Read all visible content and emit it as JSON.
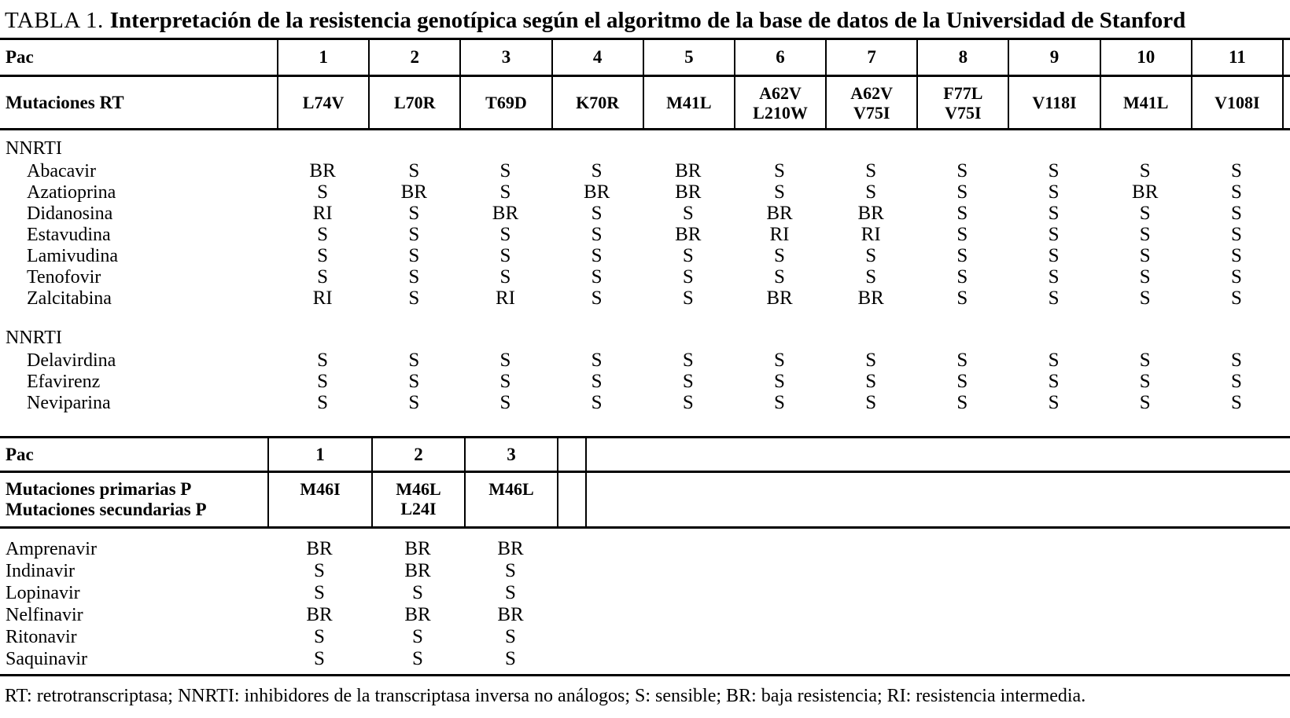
{
  "title": {
    "prefix": "TABLA 1.",
    "main": "Interpretación de la resistencia genotípica según el algoritmo de la base de datos de la Universidad de Stanford"
  },
  "rt_table": {
    "pac_label": "Pac",
    "patients": [
      "1",
      "2",
      "3",
      "4",
      "5",
      "6",
      "7",
      "8",
      "9",
      "10",
      "11"
    ],
    "mutations_label": "Mutaciones RT",
    "mutations": [
      [
        "L74V"
      ],
      [
        "L70R"
      ],
      [
        "T69D"
      ],
      [
        "K70R"
      ],
      [
        "M41L"
      ],
      [
        "A62V",
        "L210W"
      ],
      [
        "A62V",
        "V75I"
      ],
      [
        "F77L",
        "V75I"
      ],
      [
        "V118I"
      ],
      [
        "M41L"
      ],
      [
        "V108I"
      ]
    ],
    "sections": [
      {
        "heading": "NNRTI",
        "rows": [
          {
            "drug": "Abacavir",
            "values": [
              "BR",
              "S",
              "S",
              "S",
              "BR",
              "S",
              "S",
              "S",
              "S",
              "S",
              "S"
            ]
          },
          {
            "drug": "Azatioprina",
            "values": [
              "S",
              "BR",
              "S",
              "BR",
              "BR",
              "S",
              "S",
              "S",
              "S",
              "BR",
              "S"
            ]
          },
          {
            "drug": "Didanosina",
            "values": [
              "RI",
              "S",
              "BR",
              "S",
              "S",
              "BR",
              "BR",
              "S",
              "S",
              "S",
              "S"
            ]
          },
          {
            "drug": "Estavudina",
            "values": [
              "S",
              "S",
              "S",
              "S",
              "BR",
              "RI",
              "RI",
              "S",
              "S",
              "S",
              "S"
            ]
          },
          {
            "drug": "Lamivudina",
            "values": [
              "S",
              "S",
              "S",
              "S",
              "S",
              "S",
              "S",
              "S",
              "S",
              "S",
              "S"
            ]
          },
          {
            "drug": "Tenofovir",
            "values": [
              "S",
              "S",
              "S",
              "S",
              "S",
              "S",
              "S",
              "S",
              "S",
              "S",
              "S"
            ]
          },
          {
            "drug": "Zalcitabina",
            "values": [
              "RI",
              "S",
              "RI",
              "S",
              "S",
              "BR",
              "BR",
              "S",
              "S",
              "S",
              "S"
            ]
          }
        ]
      },
      {
        "heading": "NNRTI",
        "rows": [
          {
            "drug": "Delavirdina",
            "values": [
              "S",
              "S",
              "S",
              "S",
              "S",
              "S",
              "S",
              "S",
              "S",
              "S",
              "S"
            ]
          },
          {
            "drug": "Efavirenz",
            "values": [
              "S",
              "S",
              "S",
              "S",
              "S",
              "S",
              "S",
              "S",
              "S",
              "S",
              "S"
            ]
          },
          {
            "drug": "Neviparina",
            "values": [
              "S",
              "S",
              "S",
              "S",
              "S",
              "S",
              "S",
              "S",
              "S",
              "S",
              "S"
            ]
          }
        ]
      }
    ]
  },
  "p_table": {
    "pac_label": "Pac",
    "patients": [
      "1",
      "2",
      "3"
    ],
    "mutations_label": [
      "Mutaciones primarias P",
      "Mutaciones secundarias P"
    ],
    "mutations": [
      [
        "M46I"
      ],
      [
        "M46L",
        "L24I"
      ],
      [
        "M46L"
      ]
    ],
    "rows": [
      {
        "drug": "Amprenavir",
        "values": [
          "BR",
          "BR",
          "BR"
        ]
      },
      {
        "drug": "Indinavir",
        "values": [
          "S",
          "BR",
          "S"
        ]
      },
      {
        "drug": "Lopinavir",
        "values": [
          "S",
          "S",
          "S"
        ]
      },
      {
        "drug": "Nelfinavir",
        "values": [
          "BR",
          "BR",
          "BR"
        ]
      },
      {
        "drug": "Ritonavir",
        "values": [
          "S",
          "S",
          "S"
        ]
      },
      {
        "drug": "Saquinavir",
        "values": [
          "S",
          "S",
          "S"
        ]
      }
    ]
  },
  "footnote": "RT: retrotranscriptasa; NNRTI: inhibidores de la transcriptasa inversa no análogos; S: sensible; BR: baja resistencia; RI: resistencia intermedia."
}
